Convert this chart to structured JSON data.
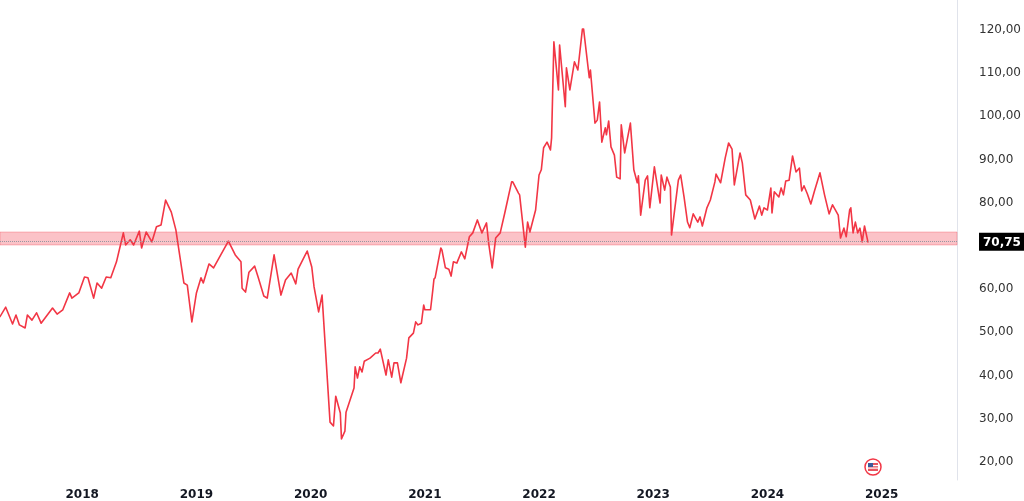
{
  "chart_data": {
    "type": "line",
    "x": [
      2017.28,
      2017.33,
      2017.39,
      2017.42,
      2017.45,
      2017.5,
      2017.52,
      2017.56,
      2017.6,
      2017.64,
      2017.74,
      2017.78,
      2017.83,
      2017.89,
      2017.91,
      2017.97,
      2018.02,
      2018.05,
      2018.1,
      2018.13,
      2018.17,
      2018.21,
      2018.25,
      2018.3,
      2018.36,
      2018.38,
      2018.42,
      2018.45,
      2018.5,
      2018.52,
      2018.56,
      2018.61,
      2018.65,
      2018.69,
      2018.73,
      2018.78,
      2018.82,
      2018.89,
      2018.92,
      2018.96,
      2019.0,
      2019.04,
      2019.06,
      2019.11,
      2019.15,
      2019.28,
      2019.34,
      2019.39,
      2019.4,
      2019.43,
      2019.46,
      2019.51,
      2019.54,
      2019.59,
      2019.62,
      2019.68,
      2019.74,
      2019.78,
      2019.83,
      2019.87,
      2019.89,
      2019.97,
      2020.01,
      2020.03,
      2020.07,
      2020.1,
      2020.17,
      2020.2,
      2020.22,
      2020.26,
      2020.27,
      2020.3,
      2020.31,
      2020.38,
      2020.39,
      2020.41,
      2020.43,
      2020.45,
      2020.47,
      2020.52,
      2020.57,
      2020.59,
      2020.61,
      2020.66,
      2020.68,
      2020.71,
      2020.73,
      2020.76,
      2020.79,
      2020.84,
      2020.86,
      2020.9,
      2020.92,
      2020.94,
      2020.97,
      2020.99,
      2021.0,
      2021.05,
      2021.07,
      2021.08,
      2021.09,
      2021.14,
      2021.15,
      2021.18,
      2021.21,
      2021.23,
      2021.25,
      2021.28,
      2021.32,
      2021.35,
      2021.39,
      2021.42,
      2021.46,
      2021.5,
      2021.54,
      2021.56,
      2021.59,
      2021.62,
      2021.66,
      2021.7,
      2021.76,
      2021.77,
      2021.82,
      2021.83,
      2021.88,
      2021.9,
      2021.92,
      2021.97,
      2022.0,
      2022.02,
      2022.04,
      2022.07,
      2022.1,
      2022.11,
      2022.13,
      2022.17,
      2022.18,
      2022.23,
      2022.24,
      2022.27,
      2022.31,
      2022.34,
      2022.38,
      2022.39,
      2022.44,
      2022.45,
      2022.49,
      2022.51,
      2022.53,
      2022.55,
      2022.58,
      2022.59,
      2022.61,
      2022.63,
      2022.66,
      2022.68,
      2022.71,
      2022.72,
      2022.75,
      2022.8,
      2022.83,
      2022.86,
      2022.87,
      2022.89,
      2022.93,
      2022.95,
      2022.97,
      2023.01,
      2023.06,
      2023.07,
      2023.1,
      2023.12,
      2023.15,
      2023.16,
      2023.22,
      2023.24,
      2023.27,
      2023.3,
      2023.32,
      2023.35,
      2023.39,
      2023.41,
      2023.43,
      2023.47,
      2023.5,
      2023.54,
      2023.55,
      2023.59,
      2023.63,
      2023.66,
      2023.69,
      2023.71,
      2023.76,
      2023.78,
      2023.81,
      2023.85,
      2023.89,
      2023.93,
      2023.95,
      2023.97,
      2024.0,
      2024.03,
      2024.04,
      2024.06,
      2024.1,
      2024.12,
      2024.14,
      2024.16,
      2024.19,
      2024.22,
      2024.25,
      2024.28,
      2024.3,
      2024.32,
      2024.35,
      2024.38,
      2024.41,
      2024.46,
      2024.5,
      2024.54,
      2024.57,
      2024.62,
      2024.64,
      2024.67,
      2024.69,
      2024.72,
      2024.73,
      2024.75,
      2024.77,
      2024.79,
      2024.81,
      2024.83,
      2024.85,
      2024.88
    ],
    "series": [
      {
        "color": "#f23645",
        "values": [
          53.4,
          55.6,
          51.7,
          53.8,
          51.5,
          50.8,
          53.8,
          52.6,
          54.3,
          51.9,
          55.4,
          54.0,
          55.0,
          58.9,
          57.7,
          58.9,
          62.6,
          62.4,
          57.7,
          61.2,
          60.0,
          62.6,
          62.4,
          66.1,
          72.8,
          70.0,
          71.2,
          70.0,
          73.2,
          69.3,
          73.0,
          70.7,
          74.2,
          74.6,
          80.4,
          77.6,
          73.5,
          61.2,
          60.7,
          52.2,
          58.9,
          62.4,
          61.2,
          65.6,
          64.7,
          70.9,
          67.7,
          66.1,
          60.0,
          59.1,
          63.7,
          65.1,
          62.6,
          58.2,
          57.7,
          67.7,
          58.4,
          61.9,
          63.5,
          61.0,
          64.4,
          68.6,
          64.9,
          60.3,
          54.5,
          58.4,
          29.0,
          28.1,
          35.0,
          31.1,
          25.1,
          26.9,
          31.3,
          36.9,
          41.8,
          39.2,
          41.8,
          40.6,
          43.1,
          43.8,
          45.0,
          45.0,
          45.9,
          39.9,
          43.4,
          39.4,
          42.7,
          42.7,
          38.1,
          43.8,
          48.5,
          49.6,
          52.2,
          51.5,
          51.9,
          56.1,
          55.0,
          55.0,
          59.6,
          62.1,
          62.4,
          69.3,
          68.8,
          64.7,
          64.4,
          62.8,
          66.1,
          65.8,
          68.4,
          66.8,
          71.9,
          72.8,
          75.8,
          72.8,
          75.1,
          70.2,
          64.7,
          71.6,
          72.8,
          77.4,
          84.6,
          84.6,
          82.0,
          81.6,
          69.5,
          75.3,
          73.0,
          78.1,
          86.2,
          87.4,
          92.5,
          93.8,
          92.0,
          94.8,
          117.0,
          105.9,
          116.3,
          102.0,
          111.0,
          105.9,
          112.4,
          110.5,
          120.0,
          120.0,
          108.7,
          110.5,
          98.2,
          98.9,
          103.1,
          93.8,
          97.1,
          95.5,
          98.7,
          92.7,
          90.8,
          85.7,
          85.3,
          97.8,
          91.3,
          98.2,
          87.4,
          84.4,
          86.0,
          76.9,
          85.0,
          86.0,
          78.6,
          88.1,
          79.7,
          86.2,
          82.7,
          85.7,
          83.4,
          72.3,
          85.0,
          86.2,
          81.1,
          75.3,
          74.0,
          77.2,
          75.3,
          76.5,
          74.4,
          78.6,
          80.4,
          84.6,
          86.4,
          84.4,
          90.1,
          93.6,
          92.2,
          83.9,
          91.3,
          89.0,
          81.6,
          80.4,
          76.0,
          79.0,
          76.9,
          78.6,
          78.1,
          83.2,
          77.4,
          82.3,
          81.1,
          83.2,
          81.6,
          84.8,
          85.0,
          90.6,
          86.9,
          87.8,
          82.5,
          83.7,
          81.8,
          79.5,
          82.3,
          86.7,
          81.6,
          77.2,
          79.3,
          76.9,
          71.6,
          73.9,
          71.9,
          78.1,
          78.6,
          72.8,
          75.3,
          72.8,
          73.9,
          70.7,
          74.4,
          70.7
        ]
      }
    ],
    "xlim": [
      2017.28,
      2025.66
    ],
    "xticks": [
      2018,
      2019,
      2020,
      2021,
      2022,
      2023,
      2024,
      2025
    ],
    "ylim": [
      15.6,
      126.7
    ],
    "yticks": [
      {
        "value": 20,
        "label": "20,00"
      },
      {
        "value": 30,
        "label": "30,00"
      },
      {
        "value": 40,
        "label": "40,00"
      },
      {
        "value": 50,
        "label": "50,00"
      },
      {
        "value": 60,
        "label": "60,00"
      },
      {
        "value": 80,
        "label": "80,00"
      },
      {
        "value": 90,
        "label": "90,00"
      },
      {
        "value": 100,
        "label": "100,00"
      },
      {
        "value": 110,
        "label": "110,00"
      },
      {
        "value": 120,
        "label": "120,00"
      }
    ],
    "ref_lines": [
      {
        "axis": "y",
        "value": 70.75,
        "label": "70,75",
        "color": "#9598a1",
        "line_style": "dotted"
      }
    ],
    "bands": [
      {
        "axis": "y",
        "from": 70,
        "to": 73,
        "color": "#f23645"
      }
    ],
    "marker": "none",
    "line_style": "solid",
    "grid": false
  }
}
